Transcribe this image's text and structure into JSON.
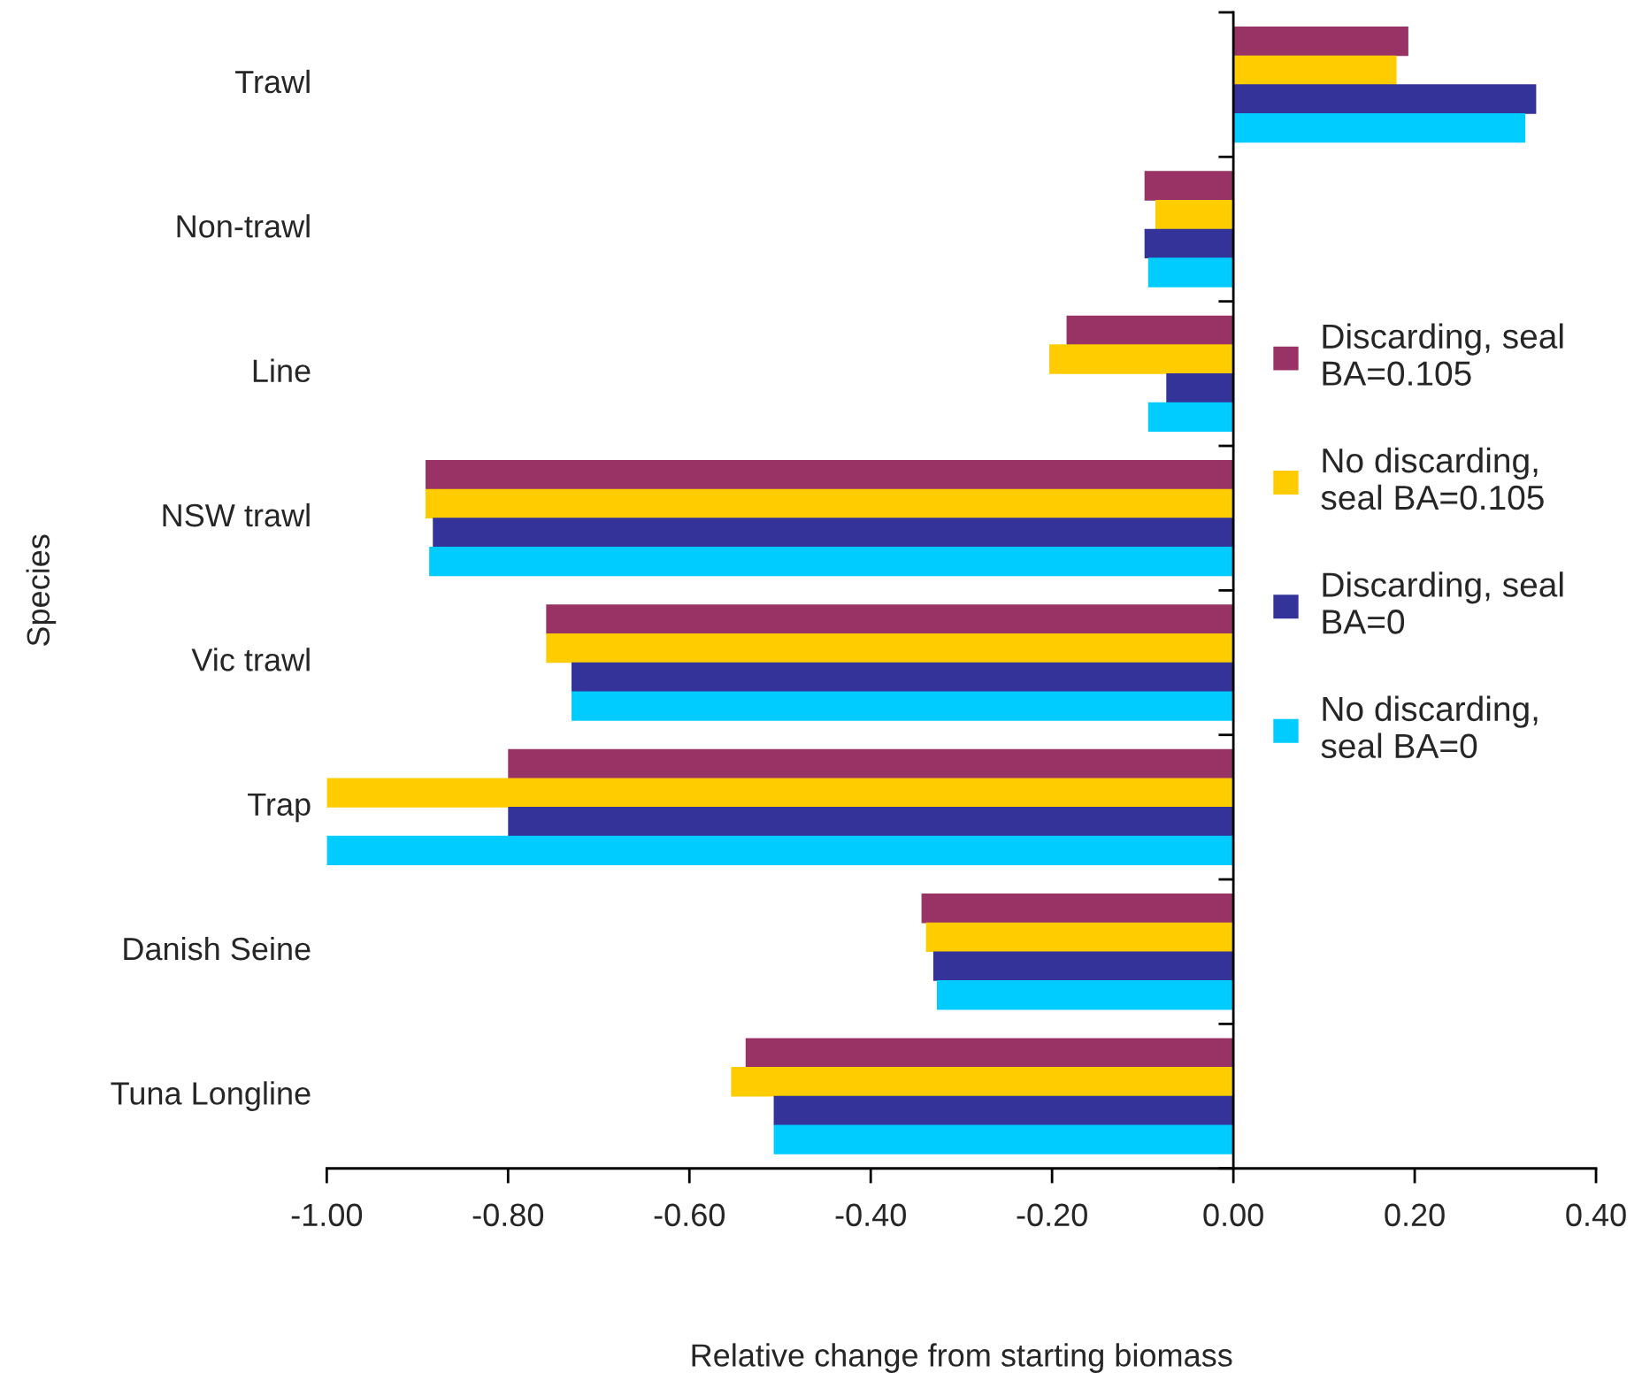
{
  "chart_data": {
    "type": "bar",
    "orientation": "horizontal",
    "xlabel": "Relative change from starting biomass",
    "ylabel": "Species",
    "categories": [
      "Trawl",
      "Non-trawl",
      "Line",
      "NSW trawl",
      "Vic trawl",
      "Trap",
      "Danish Seine",
      "Tuna Longline"
    ],
    "series": [
      {
        "name": "Discarding, seal\nBA=0.105",
        "color": "#993366",
        "values": [
          0.193,
          -0.098,
          -0.184,
          -0.891,
          -0.758,
          -0.8,
          -0.344,
          -0.538
        ]
      },
      {
        "name": "No discarding,\nseal BA=0.105",
        "color": "#ffcc00",
        "values": [
          0.18,
          -0.086,
          -0.203,
          -0.891,
          -0.758,
          -1.0,
          -0.339,
          -0.554
        ]
      },
      {
        "name": "Discarding, seal\nBA=0",
        "color": "#333399",
        "values": [
          0.334,
          -0.098,
          -0.074,
          -0.883,
          -0.73,
          -0.8,
          -0.331,
          -0.507
        ]
      },
      {
        "name": "No discarding,\nseal BA=0",
        "color": "#00ccff",
        "values": [
          0.322,
          -0.094,
          -0.094,
          -0.887,
          -0.73,
          -1.0,
          -0.327,
          -0.507
        ]
      }
    ],
    "xlim": [
      -1.0,
      0.4
    ],
    "xticks": [
      {
        "value": -1.0,
        "label": "-1.00"
      },
      {
        "value": -0.8,
        "label": "-0.80"
      },
      {
        "value": -0.6,
        "label": "-0.60"
      },
      {
        "value": -0.4,
        "label": "-0.40"
      },
      {
        "value": -0.2,
        "label": "-0.20"
      },
      {
        "value": 0.0,
        "label": "0.00"
      },
      {
        "value": 0.2,
        "label": "0.20"
      },
      {
        "value": 0.4,
        "label": "0.40"
      }
    ],
    "legend": "right"
  }
}
